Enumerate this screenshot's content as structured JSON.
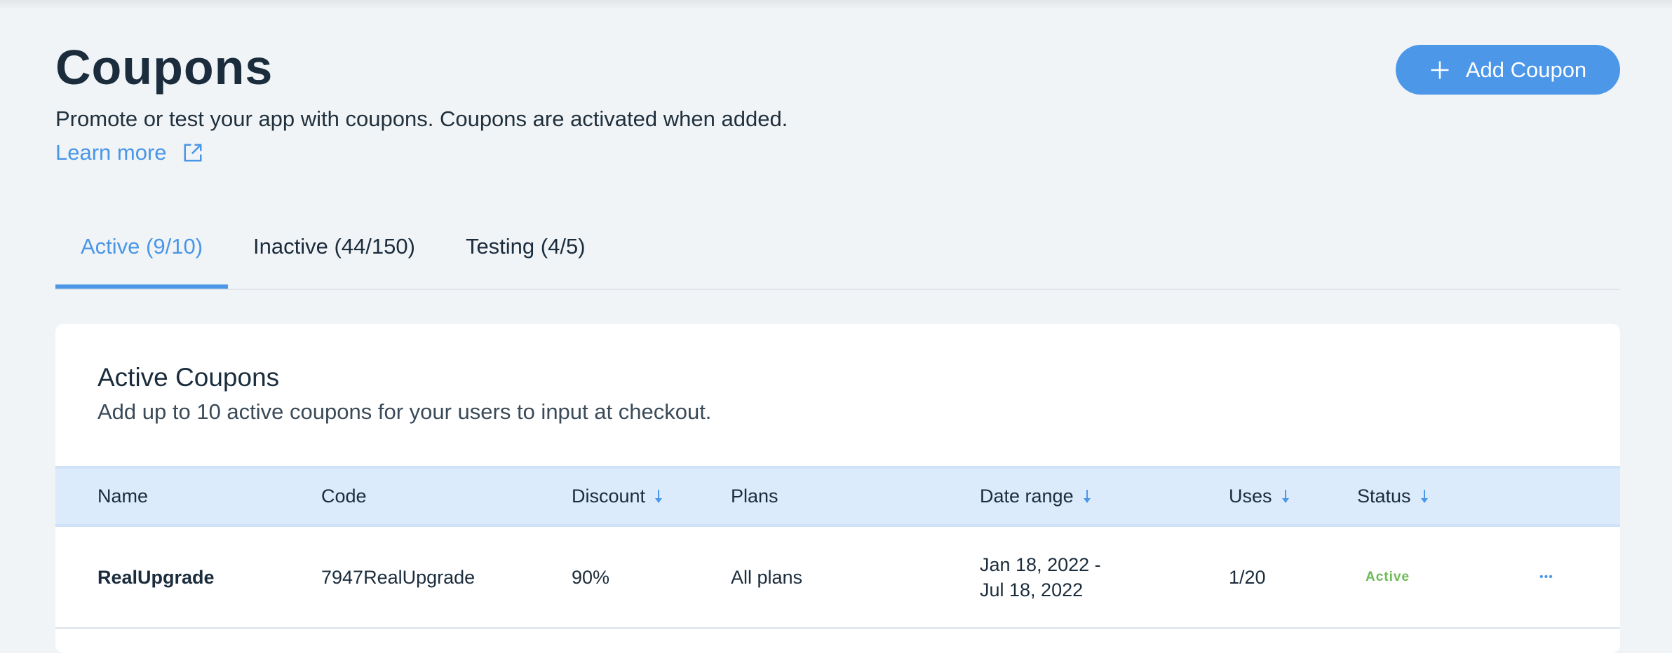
{
  "header": {
    "title": "Coupons",
    "subtitle": "Promote or test your app with coupons. Coupons are activated when added.",
    "learn_more": "Learn more",
    "add_button": "Add Coupon"
  },
  "tabs": [
    {
      "label": "Active (9/10)",
      "active": true
    },
    {
      "label": "Inactive (44/150)"
    },
    {
      "label": "Testing (4/5)"
    }
  ],
  "card": {
    "title": "Active Coupons",
    "subtitle": "Add up to 10 active coupons for your users to input at checkout."
  },
  "table": {
    "columns": [
      "Name",
      "Code",
      "Discount",
      "Plans",
      "Date range",
      "Uses",
      "Status"
    ],
    "rows": [
      {
        "name": "RealUpgrade",
        "code": "7947RealUpgrade",
        "discount": "90%",
        "plans": "All plans",
        "date_start": "Jan 18, 2022 -",
        "date_end": "Jul 18, 2022",
        "uses": "1/20",
        "status": "Active",
        "more": "•••"
      }
    ]
  },
  "colors": {
    "accent": "#4c97e8",
    "header_band": "#dcebfb",
    "status_active": "#6cbb57"
  }
}
